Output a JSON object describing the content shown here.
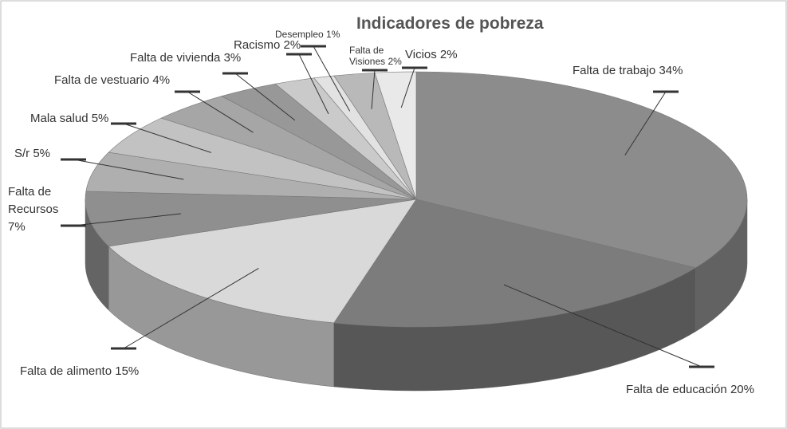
{
  "chart_data": {
    "type": "pie",
    "title": "Indicadores de pobreza",
    "categories": [
      "Falta de trabajo",
      "Falta de educación",
      "Falta de alimento",
      "Falta de Recursos",
      "S/r",
      "Mala salud",
      "Falta de vestuario",
      "Falta de vivienda",
      "Racismo",
      "Desempleo",
      "Falta de Visiones",
      "Vicios"
    ],
    "values": [
      34,
      20,
      15,
      7,
      5,
      5,
      4,
      3,
      2,
      1,
      2,
      2
    ],
    "value_labels": [
      "34%",
      "20%",
      "15%",
      "7%",
      "5%",
      "5%",
      "4%",
      "3%",
      "2%",
      "1%",
      "2%",
      "2%"
    ],
    "colors": [
      "#8c8c8c",
      "#7c7c7c",
      "#d9d9d9",
      "#8f8f8f",
      "#afafaf",
      "#c2c2c2",
      "#a6a6a6",
      "#989898",
      "#cacaca",
      "#e2e2e2",
      "#b9b9b9",
      "#e9e9e9"
    ]
  }
}
